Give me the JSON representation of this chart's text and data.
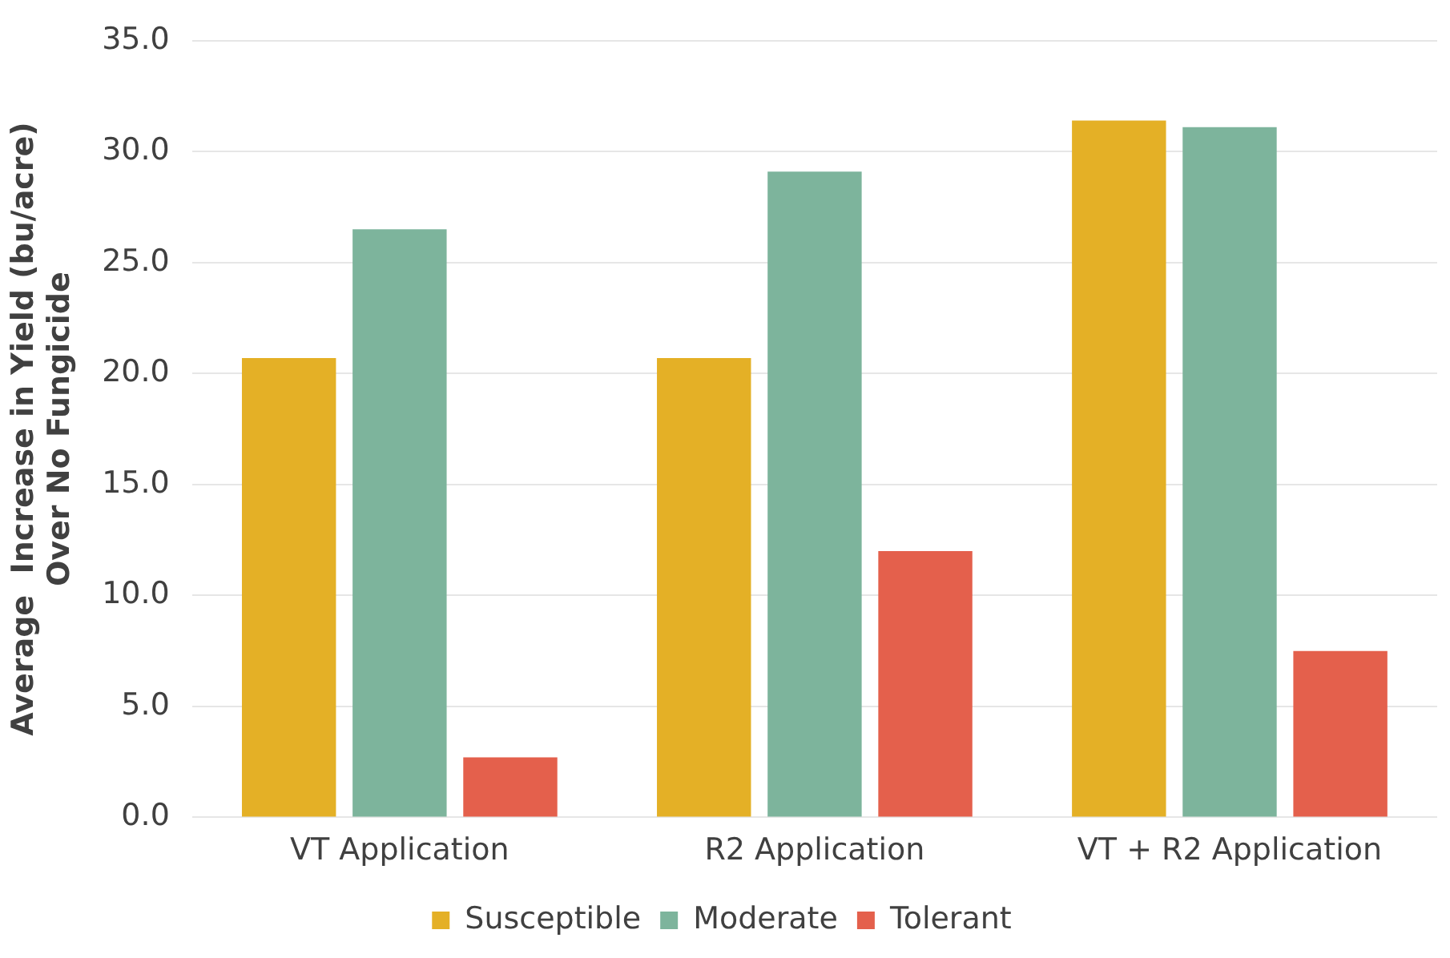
{
  "chart_data": {
    "type": "bar",
    "ylabel": "Average  Increase in Yield (bu/acre)\nOver No Fungicide",
    "categories": [
      "VT Application",
      "R2 Application",
      "VT + R2 Application"
    ],
    "series": [
      {
        "name": "Susceptible",
        "color": "#e4b026",
        "values": [
          20.7,
          20.7,
          31.4
        ]
      },
      {
        "name": "Moderate",
        "color": "#7db49c",
        "values": [
          26.5,
          29.1,
          31.1
        ]
      },
      {
        "name": "Tolerant",
        "color": "#e4604c",
        "values": [
          2.7,
          12.0,
          7.5
        ]
      }
    ],
    "ylim": [
      0,
      35
    ],
    "yticks": [
      {
        "value": 0,
        "label": "0.0"
      },
      {
        "value": 5,
        "label": "5.0"
      },
      {
        "value": 10,
        "label": "10.0"
      },
      {
        "value": 15,
        "label": "15.0"
      },
      {
        "value": 20,
        "label": "20.0"
      },
      {
        "value": 25,
        "label": "25.0"
      },
      {
        "value": 30,
        "label": "30.0"
      },
      {
        "value": 35,
        "label": "35.0"
      }
    ],
    "grid": "y",
    "legend": "bottom"
  }
}
